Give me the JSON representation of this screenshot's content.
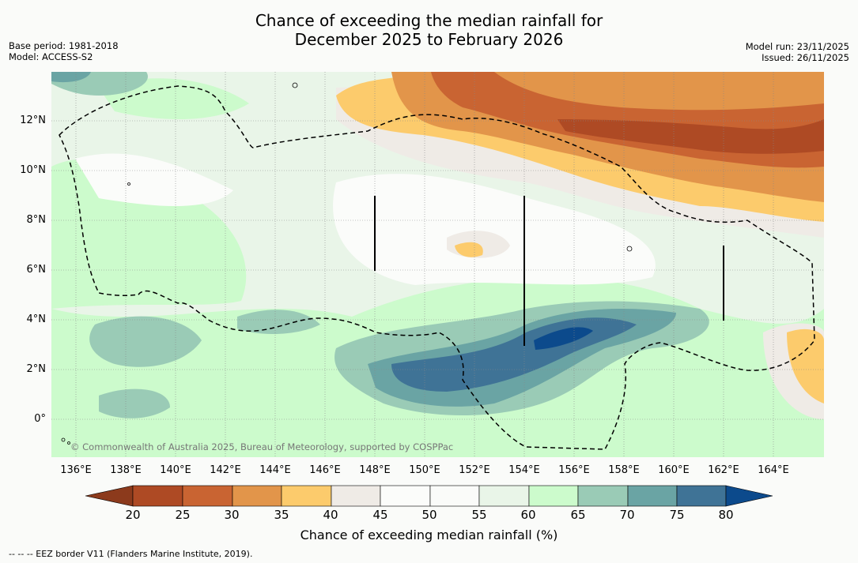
{
  "title": {
    "line1": "Chance of exceeding the median rainfall for",
    "line2": "December 2025 to February 2026"
  },
  "meta_left": {
    "base_period": "Base period: 1981-2018",
    "model": "Model: ACCESS-S2"
  },
  "meta_right": {
    "model_run": "Model run: 23/11/2025",
    "issued": "Issued: 26/11/2025"
  },
  "map": {
    "lat_labels": [
      "12°N",
      "10°N",
      "8°N",
      "6°N",
      "4°N",
      "2°N",
      "0°"
    ],
    "lon_labels": [
      "136°E",
      "138°E",
      "140°E",
      "142°E",
      "144°E",
      "146°E",
      "148°E",
      "150°E",
      "152°E",
      "154°E",
      "156°E",
      "158°E",
      "160°E",
      "162°E",
      "164°E"
    ],
    "copyright": "© Commonwealth of Australia 2025, Bureau of Meteorology, supported by COSPPac"
  },
  "legend": {
    "ticks": [
      "20",
      "25",
      "30",
      "35",
      "40",
      "45",
      "50",
      "55",
      "60",
      "65",
      "70",
      "75",
      "80"
    ],
    "title": "Chance of exceeding median rainfall (%)",
    "colors": {
      "below_20": "#8c3a1c",
      "c20_25": "#ae4a24",
      "c25_30": "#c96432",
      "c30_35": "#e2954a",
      "c35_40": "#fccb6c",
      "c40_45": "#efebe6",
      "c45_50": "#fbfcfa",
      "c50_55": "#fafbf9",
      "c55_60": "#e9f5e8",
      "c60_65": "#ccfbcc",
      "c65_70": "#9acbb6",
      "c70_75": "#6aa4a4",
      "c75_80": "#3f7396",
      "above_80": "#0c4a8c"
    }
  },
  "footnote": "-- -- -- EEZ border V11 (Flanders Marine Institute, 2019)."
}
